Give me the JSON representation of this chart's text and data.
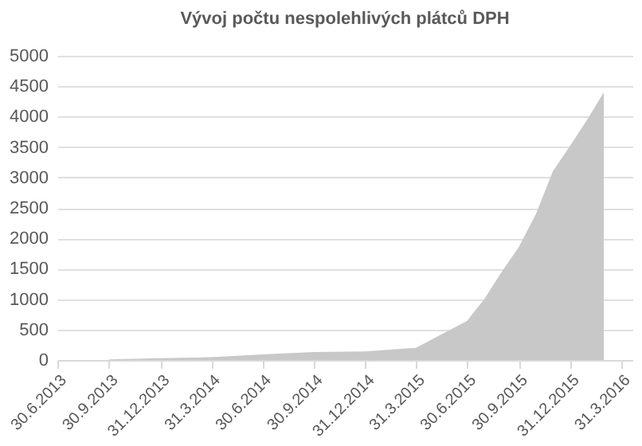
{
  "chart_data": {
    "type": "area",
    "title": "Vývoj počtu nespolehlivých  plátců DPH",
    "x": [
      "2013-09-30",
      "2013-12-31",
      "2014-03-31",
      "2014-06-30",
      "2014-09-30",
      "2014-12-31",
      "2015-03-31",
      "2015-06-30",
      "2015-07-31",
      "2015-08-31",
      "2015-09-30",
      "2015-10-31",
      "2015-11-30",
      "2015-12-31",
      "2016-01-31",
      "2016-02-29"
    ],
    "series": [
      {
        "color": "#c8c8c8",
        "values": [
          10,
          30,
          45,
          90,
          130,
          140,
          200,
          640,
          1000,
          1450,
          1850,
          2400,
          3100,
          3520,
          3960,
          4400
        ]
      }
    ],
    "xlim": [
      "2013-06-30",
      "2016-04-20"
    ],
    "xticks": [
      {
        "value": "2013-06-30",
        "label": "30.6.2013"
      },
      {
        "value": "2013-09-30",
        "label": "30.9.2013"
      },
      {
        "value": "2013-12-31",
        "label": "31.12.2013"
      },
      {
        "value": "2014-03-31",
        "label": "31.3.2014"
      },
      {
        "value": "2014-06-30",
        "label": "30.6.2014"
      },
      {
        "value": "2014-09-30",
        "label": "30.9.2014"
      },
      {
        "value": "2014-12-31",
        "label": "31.12.2014"
      },
      {
        "value": "2015-03-31",
        "label": "31.3.2015"
      },
      {
        "value": "2015-06-30",
        "label": "30.6.2015"
      },
      {
        "value": "2015-09-30",
        "label": "30.9.2015"
      },
      {
        "value": "2015-12-31",
        "label": "31.12.2015"
      },
      {
        "value": "2016-03-31",
        "label": "31.3.2016"
      }
    ],
    "ylim": [
      0,
      5000
    ],
    "yticks": [
      0,
      500,
      1000,
      1500,
      2000,
      2500,
      3000,
      3500,
      4000,
      4500,
      5000
    ],
    "grid": "y"
  }
}
